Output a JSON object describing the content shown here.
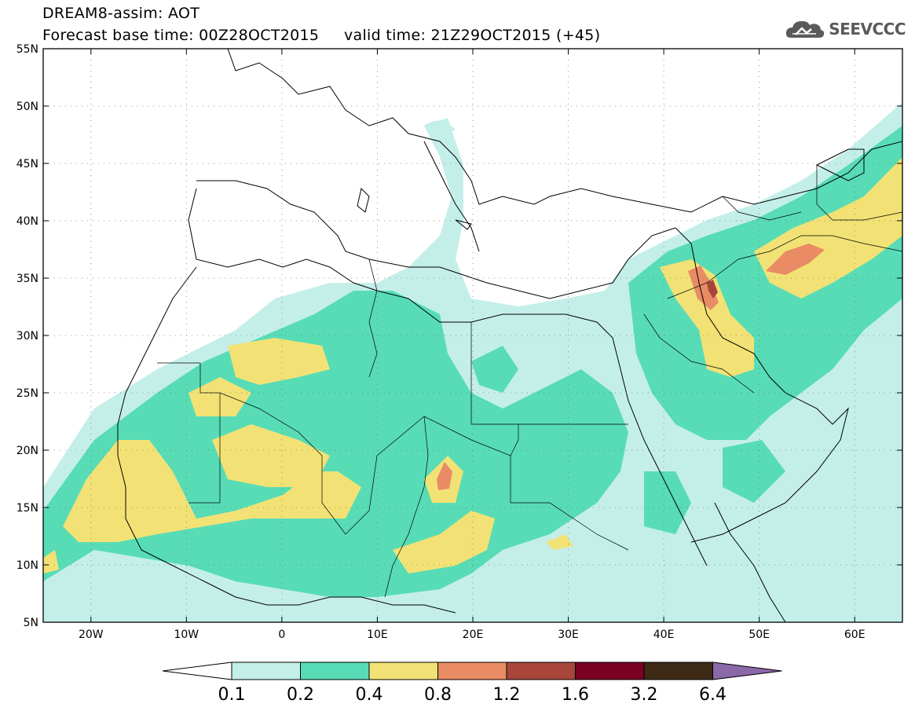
{
  "header": {
    "line1": "DREAM8-assim: AOT",
    "line2": "Forecast base time: 00Z28OCT2015     valid time: 21Z29OCT2015 (+45)"
  },
  "logo": {
    "text": "SEEVCCC",
    "icon": "cloud-icon",
    "color": "#5a5a5a"
  },
  "map": {
    "lon_range": [
      -25,
      65
    ],
    "lat_range": [
      5,
      55
    ],
    "lat_ticks": [
      5,
      10,
      15,
      20,
      25,
      30,
      35,
      40,
      45,
      50,
      55
    ],
    "lat_labels": [
      "5N",
      "10N",
      "15N",
      "20N",
      "25N",
      "30N",
      "35N",
      "40N",
      "45N",
      "50N",
      "55N"
    ],
    "lon_ticks": [
      -20,
      -10,
      0,
      10,
      20,
      30,
      40,
      50,
      60
    ],
    "lon_labels": [
      "20W",
      "10W",
      "0",
      "10E",
      "20E",
      "30E",
      "40E",
      "50E",
      "60E"
    ],
    "grid": "dotted"
  },
  "colorbar": {
    "levels": [
      "0.1",
      "0.2",
      "0.4",
      "0.8",
      "1.2",
      "1.6",
      "3.2",
      "6.4"
    ],
    "colors": [
      "#ffffff",
      "#c4efe9",
      "#57dcb6",
      "#f2e275",
      "#e98b64",
      "#a8463b",
      "#7a0024",
      "#3f2a16",
      "#8b68a8"
    ]
  }
}
